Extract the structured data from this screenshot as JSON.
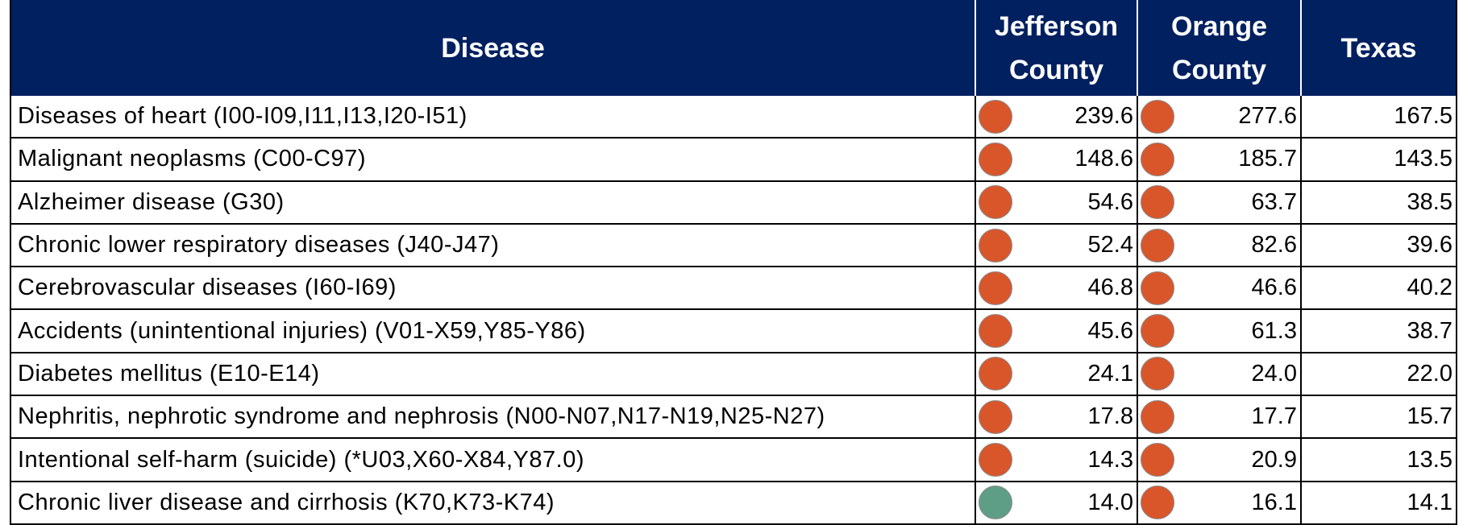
{
  "table": {
    "headers": [
      "Disease",
      "Jefferson County",
      "Orange County",
      "Texas"
    ],
    "rows": [
      {
        "disease": "Diseases of heart (I00-I09,I11,I13,I20-I51)",
        "jefferson": {
          "value": "239.6",
          "indicator": "#d9562b"
        },
        "orange": {
          "value": "277.6",
          "indicator": "#d9562b"
        },
        "texas": "167.5"
      },
      {
        "disease": "Malignant neoplasms (C00-C97)",
        "jefferson": {
          "value": "148.6",
          "indicator": "#d9562b"
        },
        "orange": {
          "value": "185.7",
          "indicator": "#d9562b"
        },
        "texas": "143.5"
      },
      {
        "disease": "Alzheimer disease (G30)",
        "jefferson": {
          "value": "54.6",
          "indicator": "#d9562b"
        },
        "orange": {
          "value": "63.7",
          "indicator": "#d9562b"
        },
        "texas": "38.5"
      },
      {
        "disease": "Chronic lower respiratory diseases (J40-J47)",
        "jefferson": {
          "value": "52.4",
          "indicator": "#d9562b"
        },
        "orange": {
          "value": "82.6",
          "indicator": "#d9562b"
        },
        "texas": "39.6"
      },
      {
        "disease": "Cerebrovascular diseases (I60-I69)",
        "jefferson": {
          "value": "46.8",
          "indicator": "#d9562b"
        },
        "orange": {
          "value": "46.6",
          "indicator": "#d9562b"
        },
        "texas": "40.2"
      },
      {
        "disease": "Accidents (unintentional injuries) (V01-X59,Y85-Y86)",
        "jefferson": {
          "value": "45.6",
          "indicator": "#d9562b"
        },
        "orange": {
          "value": "61.3",
          "indicator": "#d9562b"
        },
        "texas": "38.7"
      },
      {
        "disease": "Diabetes mellitus (E10-E14)",
        "jefferson": {
          "value": "24.1",
          "indicator": "#d9562b"
        },
        "orange": {
          "value": "24.0",
          "indicator": "#d9562b"
        },
        "texas": "22.0"
      },
      {
        "disease": "Nephritis, nephrotic syndrome and nephrosis (N00-N07,N17-N19,N25-N27)",
        "jefferson": {
          "value": "17.8",
          "indicator": "#d9562b"
        },
        "orange": {
          "value": "17.7",
          "indicator": "#d9562b"
        },
        "texas": "15.7"
      },
      {
        "disease": "Intentional self-harm (suicide) (*U03,X60-X84,Y87.0)",
        "jefferson": {
          "value": "14.3",
          "indicator": "#d9562b"
        },
        "orange": {
          "value": "20.9",
          "indicator": "#d9562b"
        },
        "texas": "13.5"
      },
      {
        "disease": "Chronic liver disease and cirrhosis (K70,K73-K74)",
        "jefferson": {
          "value": "14.0",
          "indicator": "#5f9e86"
        },
        "orange": {
          "value": "16.1",
          "indicator": "#d9562b"
        },
        "texas": "14.1"
      }
    ]
  }
}
